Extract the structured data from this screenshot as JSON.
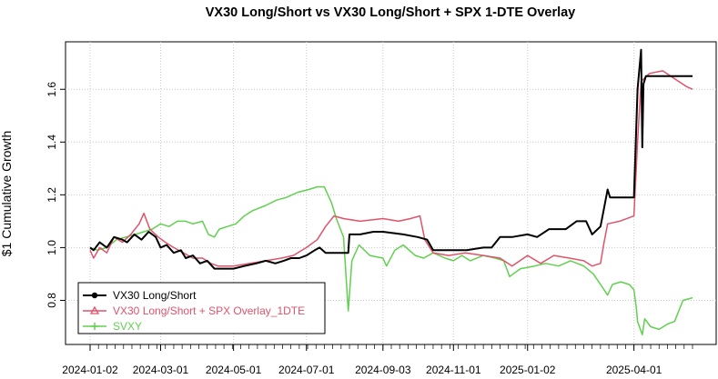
{
  "chart_data": {
    "type": "line",
    "title": "VX30 Long/Short vs VX30 Long/Short + SPX 1-DTE Overlay",
    "xlabel": "",
    "ylabel": "$1 Cumulative Growth",
    "xlim": [
      "2024-01-02",
      "2025-05-20"
    ],
    "ylim": [
      0.65,
      1.78
    ],
    "yticks": [
      0.8,
      1.0,
      1.2,
      1.4,
      1.6
    ],
    "ytick_labels": [
      "0.8",
      "1.0",
      "1.2",
      "1.4",
      "1.6"
    ],
    "xticks": [
      "2024-01-02",
      "2024-03-01",
      "2024-05-01",
      "2024-07-01",
      "2024-09-03",
      "2024-11-01",
      "2025-01-02",
      "2025-04-01"
    ],
    "grid": true,
    "legend_position": "bottom-left",
    "series": [
      {
        "name": "VX30 Long/Short",
        "color": "#000000",
        "marker": "circle",
        "points": [
          [
            "2024-01-02",
            1.0
          ],
          [
            "2024-01-05",
            0.99
          ],
          [
            "2024-01-10",
            1.02
          ],
          [
            "2024-01-16",
            1.0
          ],
          [
            "2024-01-22",
            1.04
          ],
          [
            "2024-01-29",
            1.03
          ],
          [
            "2024-02-02",
            1.02
          ],
          [
            "2024-02-08",
            1.05
          ],
          [
            "2024-02-14",
            1.03
          ],
          [
            "2024-02-20",
            1.06
          ],
          [
            "2024-02-26",
            1.04
          ],
          [
            "2024-03-01",
            1.0
          ],
          [
            "2024-03-06",
            1.01
          ],
          [
            "2024-03-12",
            0.98
          ],
          [
            "2024-03-18",
            0.99
          ],
          [
            "2024-03-22",
            0.96
          ],
          [
            "2024-03-28",
            0.97
          ],
          [
            "2024-04-03",
            0.94
          ],
          [
            "2024-04-09",
            0.95
          ],
          [
            "2024-04-15",
            0.92
          ],
          [
            "2024-04-22",
            0.92
          ],
          [
            "2024-05-01",
            0.92
          ],
          [
            "2024-05-10",
            0.93
          ],
          [
            "2024-05-20",
            0.94
          ],
          [
            "2024-05-28",
            0.95
          ],
          [
            "2024-06-05",
            0.94
          ],
          [
            "2024-06-12",
            0.95
          ],
          [
            "2024-06-18",
            0.96
          ],
          [
            "2024-06-25",
            0.96
          ],
          [
            "2024-07-01",
            0.97
          ],
          [
            "2024-07-08",
            0.99
          ],
          [
            "2024-07-12",
            1.0
          ],
          [
            "2024-07-17",
            0.98
          ],
          [
            "2024-07-25",
            0.98
          ],
          [
            "2024-08-01",
            0.98
          ],
          [
            "2024-08-05",
            0.98
          ],
          [
            "2024-08-06",
            1.05
          ],
          [
            "2024-08-15",
            1.05
          ],
          [
            "2024-08-26",
            1.06
          ],
          [
            "2024-09-03",
            1.06
          ],
          [
            "2024-09-20",
            1.05
          ],
          [
            "2024-10-02",
            1.04
          ],
          [
            "2024-10-10",
            1.03
          ],
          [
            "2024-10-15",
            0.99
          ],
          [
            "2024-10-25",
            0.99
          ],
          [
            "2024-11-01",
            0.99
          ],
          [
            "2024-11-12",
            0.99
          ],
          [
            "2024-11-26",
            1.0
          ],
          [
            "2024-12-03",
            1.0
          ],
          [
            "2024-12-10",
            1.04
          ],
          [
            "2024-12-20",
            1.04
          ],
          [
            "2025-01-02",
            1.05
          ],
          [
            "2025-01-10",
            1.04
          ],
          [
            "2025-01-20",
            1.07
          ],
          [
            "2025-02-03",
            1.07
          ],
          [
            "2025-02-12",
            1.1
          ],
          [
            "2025-02-20",
            1.1
          ],
          [
            "2025-02-25",
            1.05
          ],
          [
            "2025-03-04",
            1.08
          ],
          [
            "2025-03-07",
            1.15
          ],
          [
            "2025-03-10",
            1.22
          ],
          [
            "2025-03-12",
            1.19
          ],
          [
            "2025-03-25",
            1.19
          ],
          [
            "2025-04-01",
            1.19
          ],
          [
            "2025-04-04",
            1.6
          ],
          [
            "2025-04-07",
            1.75
          ],
          [
            "2025-04-08",
            1.38
          ],
          [
            "2025-04-09",
            1.62
          ],
          [
            "2025-04-11",
            1.65
          ],
          [
            "2025-04-25",
            1.65
          ],
          [
            "2025-05-10",
            1.65
          ],
          [
            "2025-05-20",
            1.65
          ]
        ]
      },
      {
        "name": "VX30 Long/Short + SPX Overlay_1DTE",
        "color": "#df536b",
        "marker": "triangle",
        "points": [
          [
            "2024-01-02",
            0.99
          ],
          [
            "2024-01-05",
            0.96
          ],
          [
            "2024-01-10",
            1.0
          ],
          [
            "2024-01-16",
            0.98
          ],
          [
            "2024-01-22",
            1.04
          ],
          [
            "2024-01-29",
            1.02
          ],
          [
            "2024-02-05",
            1.05
          ],
          [
            "2024-02-12",
            1.09
          ],
          [
            "2024-02-16",
            1.13
          ],
          [
            "2024-02-21",
            1.07
          ],
          [
            "2024-02-28",
            1.04
          ],
          [
            "2024-03-05",
            1.02
          ],
          [
            "2024-03-12",
            1.0
          ],
          [
            "2024-03-20",
            0.98
          ],
          [
            "2024-03-28",
            0.96
          ],
          [
            "2024-04-05",
            0.96
          ],
          [
            "2024-04-12",
            0.94
          ],
          [
            "2024-04-18",
            0.93
          ],
          [
            "2024-05-01",
            0.93
          ],
          [
            "2024-05-15",
            0.94
          ],
          [
            "2024-05-28",
            0.95
          ],
          [
            "2024-06-10",
            0.96
          ],
          [
            "2024-06-20",
            0.97
          ],
          [
            "2024-07-01",
            1.0
          ],
          [
            "2024-07-10",
            1.03
          ],
          [
            "2024-07-17",
            1.08
          ],
          [
            "2024-07-24",
            1.12
          ],
          [
            "2024-08-01",
            1.11
          ],
          [
            "2024-08-15",
            1.1
          ],
          [
            "2024-09-03",
            1.11
          ],
          [
            "2024-09-16",
            1.1
          ],
          [
            "2024-09-26",
            1.11
          ],
          [
            "2024-10-04",
            1.12
          ],
          [
            "2024-10-08",
            1.03
          ],
          [
            "2024-10-15",
            0.98
          ],
          [
            "2024-10-28",
            0.97
          ],
          [
            "2024-11-11",
            0.98
          ],
          [
            "2024-11-26",
            0.97
          ],
          [
            "2024-12-10",
            0.96
          ],
          [
            "2024-12-20",
            0.93
          ],
          [
            "2025-01-02",
            0.97
          ],
          [
            "2025-01-13",
            0.94
          ],
          [
            "2025-01-24",
            0.97
          ],
          [
            "2025-02-06",
            0.96
          ],
          [
            "2025-02-18",
            0.95
          ],
          [
            "2025-02-25",
            0.93
          ],
          [
            "2025-03-04",
            0.94
          ],
          [
            "2025-03-07",
            1.02
          ],
          [
            "2025-03-10",
            1.09
          ],
          [
            "2025-03-20",
            1.1
          ],
          [
            "2025-04-01",
            1.12
          ],
          [
            "2025-04-04",
            1.4
          ],
          [
            "2025-04-07",
            1.63
          ],
          [
            "2025-04-14",
            1.66
          ],
          [
            "2025-04-25",
            1.67
          ],
          [
            "2025-05-05",
            1.64
          ],
          [
            "2025-05-15",
            1.61
          ],
          [
            "2025-05-20",
            1.6
          ]
        ]
      },
      {
        "name": "SVXY",
        "color": "#61d04f",
        "marker": "plus",
        "points": [
          [
            "2024-01-02",
            1.0
          ],
          [
            "2024-01-08",
            0.99
          ],
          [
            "2024-01-16",
            1.0
          ],
          [
            "2024-01-24",
            1.03
          ],
          [
            "2024-02-01",
            1.04
          ],
          [
            "2024-02-09",
            1.05
          ],
          [
            "2024-02-16",
            1.06
          ],
          [
            "2024-02-23",
            1.07
          ],
          [
            "2024-03-01",
            1.09
          ],
          [
            "2024-03-08",
            1.08
          ],
          [
            "2024-03-15",
            1.1
          ],
          [
            "2024-03-22",
            1.1
          ],
          [
            "2024-03-28",
            1.09
          ],
          [
            "2024-04-05",
            1.1
          ],
          [
            "2024-04-10",
            1.05
          ],
          [
            "2024-04-15",
            1.04
          ],
          [
            "2024-04-19",
            1.07
          ],
          [
            "2024-04-26",
            1.08
          ],
          [
            "2024-05-03",
            1.09
          ],
          [
            "2024-05-10",
            1.12
          ],
          [
            "2024-05-17",
            1.14
          ],
          [
            "2024-05-28",
            1.16
          ],
          [
            "2024-06-06",
            1.18
          ],
          [
            "2024-06-14",
            1.19
          ],
          [
            "2024-06-24",
            1.21
          ],
          [
            "2024-07-03",
            1.22
          ],
          [
            "2024-07-10",
            1.23
          ],
          [
            "2024-07-16",
            1.23
          ],
          [
            "2024-07-22",
            1.17
          ],
          [
            "2024-07-26",
            1.11
          ],
          [
            "2024-08-01",
            1.04
          ],
          [
            "2024-08-05",
            0.76
          ],
          [
            "2024-08-08",
            0.95
          ],
          [
            "2024-08-14",
            1.01
          ],
          [
            "2024-08-23",
            0.97
          ],
          [
            "2024-09-03",
            0.96
          ],
          [
            "2024-09-06",
            0.93
          ],
          [
            "2024-09-13",
            0.99
          ],
          [
            "2024-09-20",
            1.01
          ],
          [
            "2024-09-30",
            0.97
          ],
          [
            "2024-10-07",
            0.96
          ],
          [
            "2024-10-15",
            0.98
          ],
          [
            "2024-10-25",
            0.96
          ],
          [
            "2024-11-01",
            0.95
          ],
          [
            "2024-11-08",
            0.97
          ],
          [
            "2024-11-15",
            0.95
          ],
          [
            "2024-11-26",
            0.97
          ],
          [
            "2024-12-06",
            0.96
          ],
          [
            "2024-12-13",
            0.95
          ],
          [
            "2024-12-18",
            0.89
          ],
          [
            "2024-12-27",
            0.92
          ],
          [
            "2025-01-08",
            0.93
          ],
          [
            "2025-01-17",
            0.94
          ],
          [
            "2025-01-28",
            0.93
          ],
          [
            "2025-02-07",
            0.95
          ],
          [
            "2025-02-18",
            0.93
          ],
          [
            "2025-02-26",
            0.9
          ],
          [
            "2025-03-04",
            0.86
          ],
          [
            "2025-03-10",
            0.82
          ],
          [
            "2025-03-14",
            0.86
          ],
          [
            "2025-03-21",
            0.87
          ],
          [
            "2025-03-28",
            0.86
          ],
          [
            "2025-04-01",
            0.84
          ],
          [
            "2025-04-03",
            0.77
          ],
          [
            "2025-04-04",
            0.72
          ],
          [
            "2025-04-08",
            0.67
          ],
          [
            "2025-04-10",
            0.73
          ],
          [
            "2025-04-15",
            0.7
          ],
          [
            "2025-04-22",
            0.69
          ],
          [
            "2025-04-29",
            0.71
          ],
          [
            "2025-05-05",
            0.72
          ],
          [
            "2025-05-12",
            0.8
          ],
          [
            "2025-05-20",
            0.81
          ]
        ]
      }
    ]
  }
}
